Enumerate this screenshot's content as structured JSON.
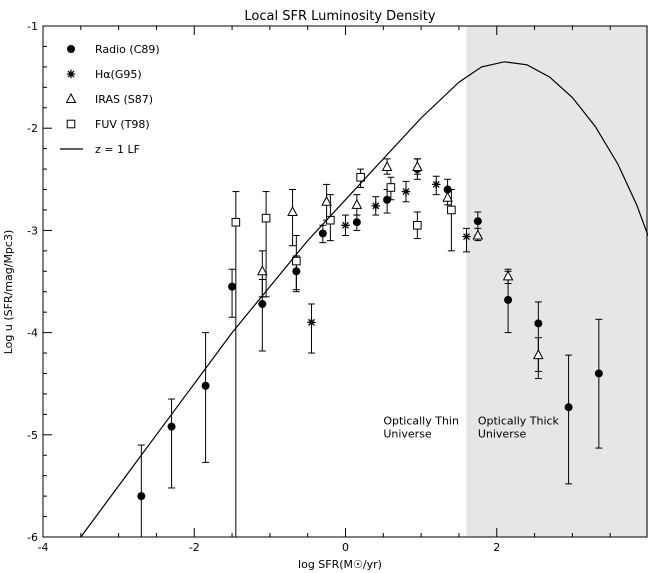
{
  "chart_data": {
    "type": "scatter",
    "title": "Local SFR Luminosity Density",
    "xlabel": "log SFR(M☉/yr)",
    "ylabel": "Log u (SFR/mag/Mpc3)",
    "xlim": [
      -4,
      4
    ],
    "ylim": [
      -6,
      -1
    ],
    "x_ticks": [
      -4,
      -2,
      0,
      2
    ],
    "x_tick_labels": [
      "-4",
      "-2",
      "0",
      "2"
    ],
    "y_ticks": [
      -6,
      -5,
      -4,
      -3,
      -2,
      -1
    ],
    "y_tick_labels": [
      "-6",
      "-5",
      "-4",
      "-3",
      "-2",
      "-1"
    ],
    "legend_position": "top-left",
    "shaded_region": {
      "x_from": 1.6,
      "x_to": 4,
      "color": "#e6e6e8"
    },
    "annotations": [
      {
        "lines": [
          "Optically Thin",
          "Universe"
        ],
        "x": 0.5,
        "y": -4.9
      },
      {
        "lines": [
          "Optically Thick",
          "Universe"
        ],
        "x": 1.75,
        "y": -4.9
      }
    ],
    "series": [
      {
        "name": "Radio (C89)",
        "marker": "filled-circle",
        "points": [
          {
            "x": -2.7,
            "y": -5.6,
            "ylo": -6.05,
            "yhi": -5.1
          },
          {
            "x": -2.3,
            "y": -4.92,
            "ylo": -5.52,
            "yhi": -4.65
          },
          {
            "x": -1.85,
            "y": -4.52,
            "ylo": -5.27,
            "yhi": -4.0
          },
          {
            "x": -1.5,
            "y": -3.55,
            "ylo": -3.85,
            "yhi": -3.38
          },
          {
            "x": -1.1,
            "y": -3.72,
            "ylo": -4.18,
            "yhi": -3.48
          },
          {
            "x": -0.65,
            "y": -3.4,
            "ylo": -3.58,
            "yhi": -3.25
          },
          {
            "x": -0.3,
            "y": -3.03,
            "ylo": -3.12,
            "yhi": -2.95
          },
          {
            "x": 0.15,
            "y": -2.92,
            "ylo": -3.0,
            "yhi": -2.85
          },
          {
            "x": 0.55,
            "y": -2.7,
            "ylo": -2.83,
            "yhi": -2.6
          },
          {
            "x": 0.95,
            "y": -2.4,
            "ylo": -2.5,
            "yhi": -2.3
          },
          {
            "x": 1.35,
            "y": -2.6,
            "ylo": -2.7,
            "yhi": -2.5
          },
          {
            "x": 1.75,
            "y": -2.91,
            "ylo": -3.05,
            "yhi": -2.82
          },
          {
            "x": 2.15,
            "y": -3.68,
            "ylo": -4.0,
            "yhi": -3.4
          },
          {
            "x": 2.55,
            "y": -3.91,
            "ylo": -4.38,
            "yhi": -3.7
          },
          {
            "x": 2.95,
            "y": -4.73,
            "ylo": -5.48,
            "yhi": -4.22
          },
          {
            "x": 3.35,
            "y": -4.4,
            "ylo": -5.13,
            "yhi": -3.87
          }
        ]
      },
      {
        "name": "Hα(G95)",
        "marker": "asterisk",
        "points": [
          {
            "x": -0.45,
            "y": -3.9,
            "ylo": -4.2,
            "yhi": -3.72
          },
          {
            "x": 0.0,
            "y": -2.95,
            "ylo": -3.05,
            "yhi": -2.85
          },
          {
            "x": 0.4,
            "y": -2.76,
            "ylo": -2.85,
            "yhi": -2.67
          },
          {
            "x": 0.8,
            "y": -2.62,
            "ylo": -2.72,
            "yhi": -2.52
          },
          {
            "x": 1.2,
            "y": -2.55,
            "ylo": -2.65,
            "yhi": -2.47
          },
          {
            "x": 1.6,
            "y": -3.06,
            "ylo": -3.21,
            "yhi": -2.98
          }
        ]
      },
      {
        "name": "IRAS (S87)",
        "marker": "open-triangle",
        "points": [
          {
            "x": -1.1,
            "y": -3.4,
            "ylo": -3.65,
            "yhi": -3.2
          },
          {
            "x": -0.7,
            "y": -2.82,
            "ylo": -3.15,
            "yhi": -2.6
          },
          {
            "x": -0.25,
            "y": -2.72,
            "ylo": -2.9,
            "yhi": -2.55
          },
          {
            "x": 0.15,
            "y": -2.75,
            "ylo": -2.85,
            "yhi": -2.65
          },
          {
            "x": 0.55,
            "y": -2.38,
            "ylo": -2.45,
            "yhi": -2.3
          },
          {
            "x": 0.95,
            "y": -2.38,
            "ylo": -2.45,
            "yhi": -2.3
          },
          {
            "x": 1.35,
            "y": -2.68,
            "ylo": -2.75,
            "yhi": -2.6
          },
          {
            "x": 1.75,
            "y": -3.05,
            "ylo": -3.1,
            "yhi": -2.98
          },
          {
            "x": 2.15,
            "y": -3.45,
            "ylo": -3.52,
            "yhi": -3.38
          },
          {
            "x": 2.55,
            "y": -4.22,
            "ylo": -4.45,
            "yhi": -4.05
          }
        ]
      },
      {
        "name": "FUV (T98)",
        "marker": "open-square",
        "points": [
          {
            "x": -1.45,
            "y": -2.92,
            "ylo": -6.1,
            "yhi": -2.62
          },
          {
            "x": -1.05,
            "y": -2.88,
            "ylo": -3.65,
            "yhi": -2.62
          },
          {
            "x": -0.65,
            "y": -3.3,
            "ylo": -3.6,
            "yhi": -3.05
          },
          {
            "x": -0.2,
            "y": -2.9,
            "ylo": -3.1,
            "yhi": -2.65
          },
          {
            "x": 0.2,
            "y": -2.48,
            "ylo": -2.58,
            "yhi": -2.4
          },
          {
            "x": 0.6,
            "y": -2.58,
            "ylo": -2.7,
            "yhi": -2.48
          },
          {
            "x": 0.95,
            "y": -2.95,
            "ylo": -3.08,
            "yhi": -2.82
          },
          {
            "x": 1.4,
            "y": -2.8,
            "ylo": -3.2,
            "yhi": -2.6
          }
        ]
      },
      {
        "name": "z = 1 LF",
        "marker": "line",
        "points": [
          {
            "x": -3.5,
            "y": -6.0
          },
          {
            "x": -3.0,
            "y": -5.5
          },
          {
            "x": -2.5,
            "y": -5.0
          },
          {
            "x": -2.0,
            "y": -4.5
          },
          {
            "x": -1.5,
            "y": -4.0
          },
          {
            "x": -1.0,
            "y": -3.55
          },
          {
            "x": -0.5,
            "y": -3.1
          },
          {
            "x": 0.0,
            "y": -2.7
          },
          {
            "x": 0.5,
            "y": -2.3
          },
          {
            "x": 1.0,
            "y": -1.9
          },
          {
            "x": 1.5,
            "y": -1.55
          },
          {
            "x": 1.8,
            "y": -1.4
          },
          {
            "x": 2.1,
            "y": -1.35
          },
          {
            "x": 2.4,
            "y": -1.38
          },
          {
            "x": 2.7,
            "y": -1.5
          },
          {
            "x": 3.0,
            "y": -1.7
          },
          {
            "x": 3.3,
            "y": -1.98
          },
          {
            "x": 3.6,
            "y": -2.35
          },
          {
            "x": 3.85,
            "y": -2.75
          },
          {
            "x": 4.0,
            "y": -3.05
          }
        ]
      }
    ]
  }
}
